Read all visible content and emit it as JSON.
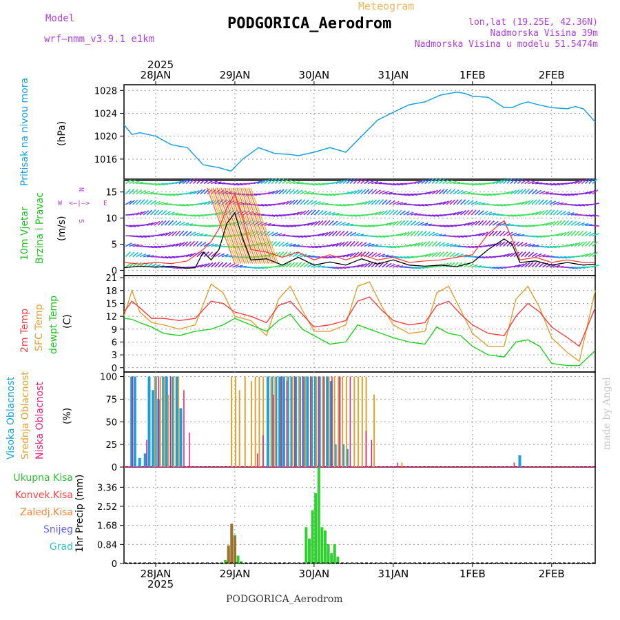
{
  "header": {
    "model_label": "Model",
    "model_name": "wrf—nmm_v3.9.1  e1km",
    "subtitle": "Meteogram",
    "title": "PODGORICA_Aerodrom",
    "lonlat": "lon,lat (19.25E, 42.36N)",
    "elevation": "Nadmorska Visina 39m",
    "model_elevation": "Nadmorska Visina u modelu 51.5474m"
  },
  "footer_title": "PODGORICA_Aerodrom",
  "watermark": "made by Angel",
  "year_label": "2025",
  "dates": [
    "28JAN",
    "29JAN",
    "30JAN",
    "31JAN",
    "1FEB",
    "2FEB"
  ],
  "wind_rose": {
    "n": "N",
    "s": "S",
    "e": "E",
    "w": "W"
  },
  "colors": {
    "pressure": "#1aa0e0",
    "wind_speed": "#000000",
    "gust": "#ff3030",
    "temp2m": "#f04040",
    "sfc_temp": "#e0a030",
    "dewpt": "#20d020",
    "cloud_high": "#1aa0e0",
    "cloud_mid": "#e0a030",
    "cloud_low": "#e0207a",
    "precip_total": "#30d030",
    "precip_conv": "#ff4040",
    "precip_large": "#ff8030",
    "snow": "#6060ff",
    "hail": "#30c0c0",
    "grid": "#999999"
  },
  "chart_data": [
    {
      "type": "line",
      "panel": "pressure",
      "ylabel_main": "Pritisak na nivou mora",
      "ylabel_unit": "(hPa)",
      "ylim": [
        1012.5,
        1029
      ],
      "yticks": [
        1016,
        1020,
        1024,
        1028
      ],
      "x_unit": "days since 27JAN 00Z",
      "xlim": [
        0.6,
        6.55
      ],
      "grid": true,
      "series": [
        {
          "name": "",
          "x": [
            0.6,
            0.7,
            0.8,
            1.0,
            1.2,
            1.4,
            1.6,
            1.8,
            1.95,
            2.1,
            2.3,
            2.5,
            2.7,
            2.8,
            3.0,
            3.2,
            3.4,
            3.6,
            3.8,
            3.9,
            4.0,
            4.2,
            4.4,
            4.6,
            4.8,
            4.9,
            5.0,
            5.2,
            5.4,
            5.5,
            5.6,
            5.7,
            5.8,
            6.0,
            6.2,
            6.3,
            6.4,
            6.55
          ],
          "values": [
            1022,
            1020.3,
            1020.6,
            1020,
            1018.5,
            1018,
            1015,
            1014.5,
            1013.9,
            1016,
            1018,
            1017,
            1016.8,
            1016.6,
            1017.2,
            1018,
            1017.2,
            1020,
            1022.8,
            1023.5,
            1024.2,
            1025.5,
            1026,
            1027.2,
            1027.7,
            1027.5,
            1027,
            1026.8,
            1025,
            1025,
            1025.6,
            1026,
            1025.6,
            1025,
            1024.8,
            1025.2,
            1024.8,
            1022.5
          ]
        }
      ]
    },
    {
      "type": "line",
      "panel": "wind",
      "ylabel_main": "10m Vjetar",
      "ylabel_second": "Brzina i Pravac",
      "ylabel_unit": "(m/s)",
      "ylim": [
        -1,
        17.2
      ],
      "yticks": [
        0,
        5,
        10,
        15
      ],
      "grid": true,
      "barb_rows": [
        0,
        2,
        4,
        6,
        8,
        10,
        12,
        14,
        16
      ],
      "series": [
        {
          "name": "",
          "x": [
            0.6,
            0.8,
            1.0,
            1.2,
            1.4,
            1.5,
            1.6,
            1.7,
            1.8,
            1.9,
            2.0,
            2.1,
            2.2,
            2.4,
            2.6,
            2.8,
            3.0,
            3.2,
            3.4,
            3.6,
            3.8,
            4.0,
            4.2,
            4.4,
            4.6,
            4.8,
            5.0,
            5.2,
            5.4,
            5.5,
            5.6,
            5.8,
            6.0,
            6.2,
            6.4,
            6.55
          ],
          "values": [
            0.5,
            0.8,
            0.6,
            0.8,
            0.4,
            0.5,
            3.5,
            2.0,
            4.0,
            9.0,
            11.0,
            6.0,
            2.0,
            2.2,
            1.0,
            2.5,
            1.0,
            1.6,
            1.0,
            2.2,
            1.2,
            2.0,
            1.0,
            0.8,
            1.0,
            0.7,
            1.5,
            4.0,
            6.0,
            5.0,
            1.5,
            1.8,
            1.0,
            1.5,
            1.0,
            1.2
          ]
        },
        {
          "name": "",
          "x": [
            0.6,
            0.8,
            1.0,
            1.2,
            1.4,
            1.6,
            1.7,
            1.8,
            1.9,
            2.0,
            2.1,
            2.2,
            2.4,
            2.6,
            2.8,
            3.0,
            3.2,
            3.4,
            3.6,
            3.8,
            4.0,
            4.2,
            4.4,
            4.6,
            4.8,
            5.0,
            5.2,
            5.4,
            5.5,
            5.6,
            5.8,
            6.0,
            6.2,
            6.4,
            6.55
          ],
          "values": [
            1.5,
            1.2,
            1.5,
            1.3,
            1.8,
            4.0,
            5.5,
            8.0,
            12.0,
            14.5,
            10.0,
            4.0,
            3.5,
            2.5,
            3.5,
            2.0,
            3.0,
            2.0,
            3.0,
            2.0,
            2.5,
            1.5,
            1.8,
            2.0,
            2.5,
            3.0,
            7.0,
            9.5,
            6.0,
            2.0,
            2.5,
            1.5,
            2.0,
            1.5,
            1.5
          ]
        }
      ]
    },
    {
      "type": "line",
      "panel": "temperature",
      "ylabel_lines": [
        "2m Temp",
        "SFC Temp",
        "dewpt Temp"
      ],
      "ylabel_unit": "(C)",
      "ylim": [
        -1,
        21.5
      ],
      "yticks": [
        0,
        3,
        6,
        9,
        12,
        15,
        18,
        21
      ],
      "grid": true,
      "series": [
        {
          "name": "2m Temp",
          "x": [
            0.6,
            0.7,
            0.8,
            0.95,
            1.1,
            1.3,
            1.5,
            1.7,
            1.85,
            2.0,
            2.2,
            2.4,
            2.55,
            2.7,
            2.85,
            3.0,
            3.2,
            3.4,
            3.55,
            3.7,
            3.85,
            4.0,
            4.2,
            4.4,
            4.55,
            4.7,
            4.85,
            5.0,
            5.2,
            5.4,
            5.55,
            5.7,
            5.85,
            6.0,
            6.2,
            6.35,
            6.55
          ],
          "values": [
            13,
            15.5,
            14,
            11.5,
            11.5,
            11,
            11.5,
            15.5,
            15,
            13,
            12,
            10.5,
            14.5,
            15.5,
            12.5,
            9.5,
            10,
            11,
            15.5,
            16.5,
            13.5,
            11,
            10,
            10.5,
            14.5,
            15.5,
            12.5,
            10,
            8,
            7.5,
            12,
            15,
            13,
            9.5,
            7,
            5,
            14
          ]
        },
        {
          "name": "SFC Temp",
          "x": [
            0.6,
            0.7,
            0.8,
            0.95,
            1.1,
            1.3,
            1.5,
            1.7,
            1.85,
            2.0,
            2.2,
            2.4,
            2.55,
            2.7,
            2.85,
            3.0,
            3.2,
            3.4,
            3.55,
            3.7,
            3.85,
            4.0,
            4.2,
            4.4,
            4.55,
            4.7,
            4.85,
            5.0,
            5.2,
            5.4,
            5.55,
            5.7,
            5.85,
            6.0,
            6.2,
            6.35,
            6.55
          ],
          "values": [
            12,
            18,
            13,
            10.5,
            10,
            9,
            10,
            19.5,
            17.5,
            12,
            11,
            7.5,
            16,
            19,
            13.5,
            8.5,
            8.5,
            10,
            19,
            20,
            14.5,
            10,
            8,
            8.5,
            17.5,
            19,
            13.5,
            8,
            5,
            5,
            16,
            19,
            14,
            7,
            3.5,
            1.5,
            18
          ]
        },
        {
          "name": "dewpt Temp",
          "x": [
            0.6,
            0.7,
            0.8,
            0.95,
            1.1,
            1.3,
            1.5,
            1.7,
            1.85,
            2.0,
            2.2,
            2.4,
            2.55,
            2.7,
            2.85,
            3.0,
            3.2,
            3.4,
            3.55,
            3.7,
            3.85,
            4.0,
            4.2,
            4.4,
            4.55,
            4.7,
            4.85,
            5.0,
            5.2,
            5.4,
            5.55,
            5.7,
            5.85,
            6.0,
            6.2,
            6.35,
            6.55
          ],
          "values": [
            11.5,
            11.3,
            10.5,
            9.5,
            8,
            7.5,
            8.5,
            9,
            10,
            11.5,
            10,
            8.5,
            11,
            12.5,
            9,
            7.5,
            5.5,
            6,
            10,
            9,
            8,
            7,
            6,
            5.5,
            9.5,
            8,
            7.5,
            5,
            3,
            2.5,
            6,
            6.5,
            5,
            1,
            0.5,
            0.5,
            4
          ]
        }
      ]
    },
    {
      "type": "bar",
      "panel": "clouds",
      "ylabel_lines": [
        "Visoka Oblacnost",
        "Srednja Oblacnost",
        "Niska Oblacnost"
      ],
      "ylabel_unit": "(%)",
      "ylim": [
        0,
        105
      ],
      "yticks": [
        0,
        25,
        50,
        75,
        100
      ],
      "grid": true,
      "series": [
        {
          "name": "Visoka Oblacnost",
          "x": [
            0.68,
            0.72,
            0.78,
            0.85,
            0.9,
            0.95,
            0.98,
            1.02,
            1.08,
            1.12,
            1.2,
            1.25,
            1.3,
            2.4,
            2.45,
            2.5,
            2.55,
            2.6,
            2.65,
            2.7,
            2.75,
            2.8,
            2.85,
            2.9,
            2.95,
            3.0,
            3.05,
            3.1,
            3.15,
            3.2,
            3.25,
            3.3,
            3.35,
            3.4,
            5.58
          ],
          "values": [
            100,
            100,
            10,
            15,
            100,
            85,
            100,
            75,
            100,
            100,
            100,
            100,
            65,
            100,
            100,
            100,
            100,
            100,
            100,
            100,
            100,
            100,
            100,
            100,
            100,
            100,
            100,
            100,
            100,
            95,
            25,
            100,
            25,
            20,
            13
          ]
        },
        {
          "name": "Srednja Oblacnost",
          "x": [
            0.98,
            1.05,
            1.1,
            1.15,
            1.22,
            1.28,
            1.95,
            2.0,
            2.05,
            2.12,
            2.2,
            2.25,
            2.3,
            2.35,
            2.45,
            2.5,
            2.58,
            2.65,
            2.72,
            2.8,
            2.88,
            2.95,
            3.02,
            3.1,
            3.18,
            3.25,
            3.3,
            3.35,
            3.4,
            3.5,
            3.55,
            3.6,
            3.65,
            3.75,
            4.1
          ],
          "values": [
            100,
            100,
            100,
            80,
            100,
            100,
            100,
            100,
            85,
            100,
            95,
            100,
            100,
            100,
            100,
            100,
            100,
            100,
            100,
            100,
            100,
            100,
            100,
            100,
            100,
            100,
            100,
            100,
            100,
            100,
            100,
            100,
            100,
            80,
            5
          ]
        },
        {
          "name": "Niska Oblacnost",
          "x": [
            0.7,
            0.88,
            1.03,
            1.18,
            1.35,
            1.42,
            2.28,
            2.35,
            2.48,
            2.58,
            2.65,
            2.75,
            2.85,
            2.95,
            3.05,
            3.12,
            3.22,
            3.32,
            3.45,
            3.65,
            3.72,
            4.05,
            5.52
          ],
          "values": [
            100,
            30,
            100,
            100,
            85,
            38,
            15,
            35,
            80,
            100,
            95,
            100,
            100,
            100,
            100,
            100,
            100,
            100,
            100,
            40,
            30,
            5,
            5
          ]
        }
      ]
    },
    {
      "type": "bar",
      "panel": "precipitation",
      "ylabel_main": "1hr Precip (mm)",
      "legend": [
        "Ukupna Kisa",
        "Konvek.Kisa",
        "Zaledj.Kisa",
        "Snijeg",
        "Grad"
      ],
      "ylim": [
        0,
        4.25
      ],
      "yticks": [
        0,
        0.84,
        1.68,
        2.52,
        3.36
      ],
      "grid": true,
      "series": [
        {
          "name": "Ukupna Kisa",
          "x": [
            1.88,
            1.92,
            1.96,
            2.0,
            2.04,
            2.08,
            2.9,
            2.94,
            2.98,
            3.02,
            3.06,
            3.1,
            3.14,
            3.18,
            3.22,
            3.26,
            3.3
          ],
          "values": [
            0.15,
            0.65,
            1.75,
            1.25,
            0.35,
            0.1,
            1.6,
            1.1,
            2.35,
            3.1,
            4.25,
            1.6,
            1.45,
            0.85,
            0.45,
            0.85,
            0.3
          ]
        },
        {
          "name": "Zaledj.Kisa",
          "x": [
            1.92,
            1.96,
            2.0
          ],
          "values": [
            0.8,
            1.75,
            1.2
          ]
        }
      ]
    }
  ]
}
